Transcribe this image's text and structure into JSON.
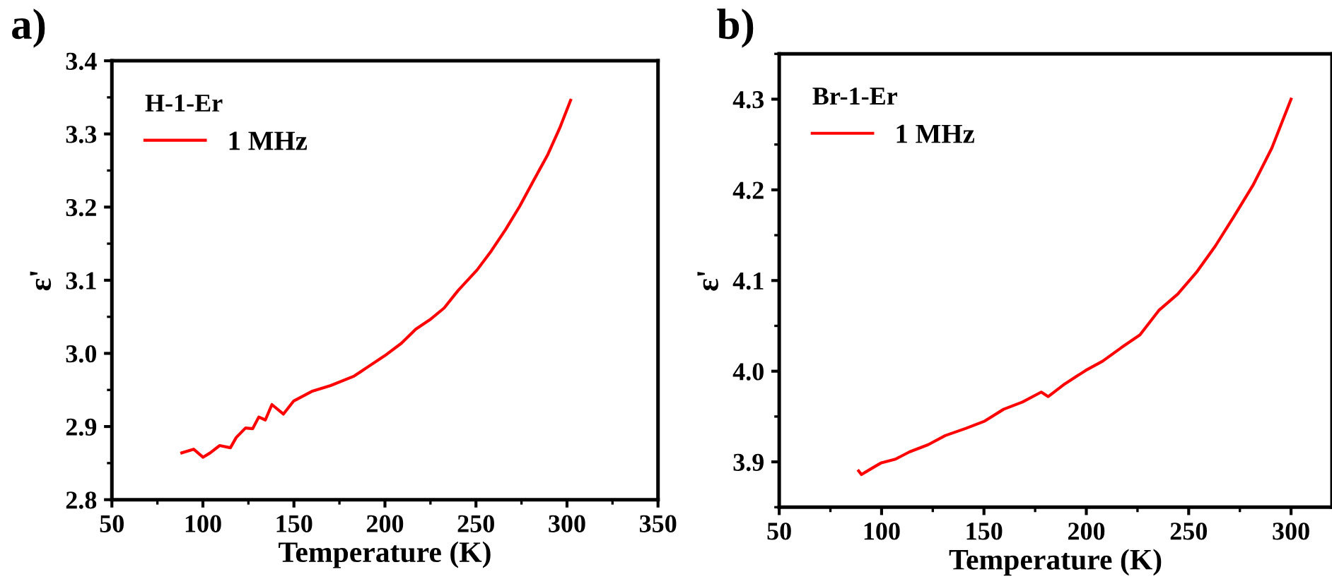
{
  "chart_data": [
    {
      "type": "line",
      "xlabel": "Temperature (K)",
      "ylabel": "ε'",
      "legend_title": "H-1-Er",
      "legend": "top left",
      "annotations": [
        "a)"
      ],
      "xlim": [
        50,
        350
      ],
      "ylim": [
        2.8,
        3.4
      ],
      "xticks": [
        50,
        100,
        150,
        200,
        250,
        300,
        350
      ],
      "yticks": [
        {
          "value": 2.8,
          "label": "2.8"
        },
        {
          "value": 2.9,
          "label": "2.9"
        },
        {
          "value": 3.0,
          "label": "3.0"
        },
        {
          "value": 3.1,
          "label": "3.1"
        },
        {
          "value": 3.2,
          "label": "3.2"
        },
        {
          "value": 3.3,
          "label": "3.3"
        },
        {
          "value": 3.4,
          "label": "3.4"
        }
      ],
      "grid": false,
      "series": [
        {
          "name": "1 MHz",
          "color": "#ff0000",
          "x": [
            88.4,
            94.9,
            100.1,
            104,
            109.2,
            115.1,
            118.3,
            123.4,
            127.3,
            130.7,
            134.3,
            137.9,
            144.2,
            149.9,
            159.8,
            170.2,
            183.1,
            190.9,
            200,
            209.1,
            216.9,
            224.7,
            232.5,
            240.2,
            250.6,
            258.4,
            266.2,
            274,
            281.8,
            289.5,
            296,
            302
          ],
          "values": [
            2.864,
            2.869,
            2.858,
            2.864,
            2.874,
            2.871,
            2.885,
            2.898,
            2.897,
            2.913,
            2.909,
            2.93,
            2.917,
            2.935,
            2.948,
            2.956,
            2.969,
            2.982,
            2.997,
            3.014,
            3.033,
            3.046,
            3.062,
            3.086,
            3.114,
            3.14,
            3.169,
            3.201,
            3.237,
            3.272,
            3.308,
            3.346
          ]
        }
      ]
    },
    {
      "type": "line",
      "xlabel": "Temperature (K)",
      "ylabel": "ε'",
      "legend_title": "Br-1-Er",
      "legend": "top left",
      "annotations": [
        "b)"
      ],
      "xlim": [
        50,
        320
      ],
      "ylim": [
        3.85,
        4.35
      ],
      "xticks": [
        50,
        100,
        150,
        200,
        250,
        300
      ],
      "yticks": [
        {
          "value": 3.9,
          "label": "3.9"
        },
        {
          "value": 4.0,
          "label": "4.0"
        },
        {
          "value": 4.1,
          "label": "4.1"
        },
        {
          "value": 4.2,
          "label": "4.2"
        },
        {
          "value": 4.3,
          "label": "4.3"
        }
      ],
      "grid": false,
      "series": [
        {
          "name": "1 MHz",
          "color": "#ff0000",
          "x": [
            88.8,
            90.2,
            95.3,
            99.9,
            106.8,
            113.6,
            122.8,
            131.1,
            141.2,
            150.4,
            159.6,
            168.8,
            178,
            181.4,
            189.5,
            199.8,
            207.9,
            217.1,
            226.2,
            235.4,
            244.6,
            253.8,
            263,
            272.2,
            281.4,
            290.6,
            300
          ],
          "values": [
            3.89,
            3.886,
            3.893,
            3.899,
            3.903,
            3.911,
            3.919,
            3.929,
            3.937,
            3.945,
            3.958,
            3.966,
            3.977,
            3.972,
            3.986,
            4.001,
            4.011,
            4.026,
            4.04,
            4.067,
            4.085,
            4.109,
            4.138,
            4.171,
            4.205,
            4.246,
            4.3
          ]
        }
      ]
    }
  ]
}
